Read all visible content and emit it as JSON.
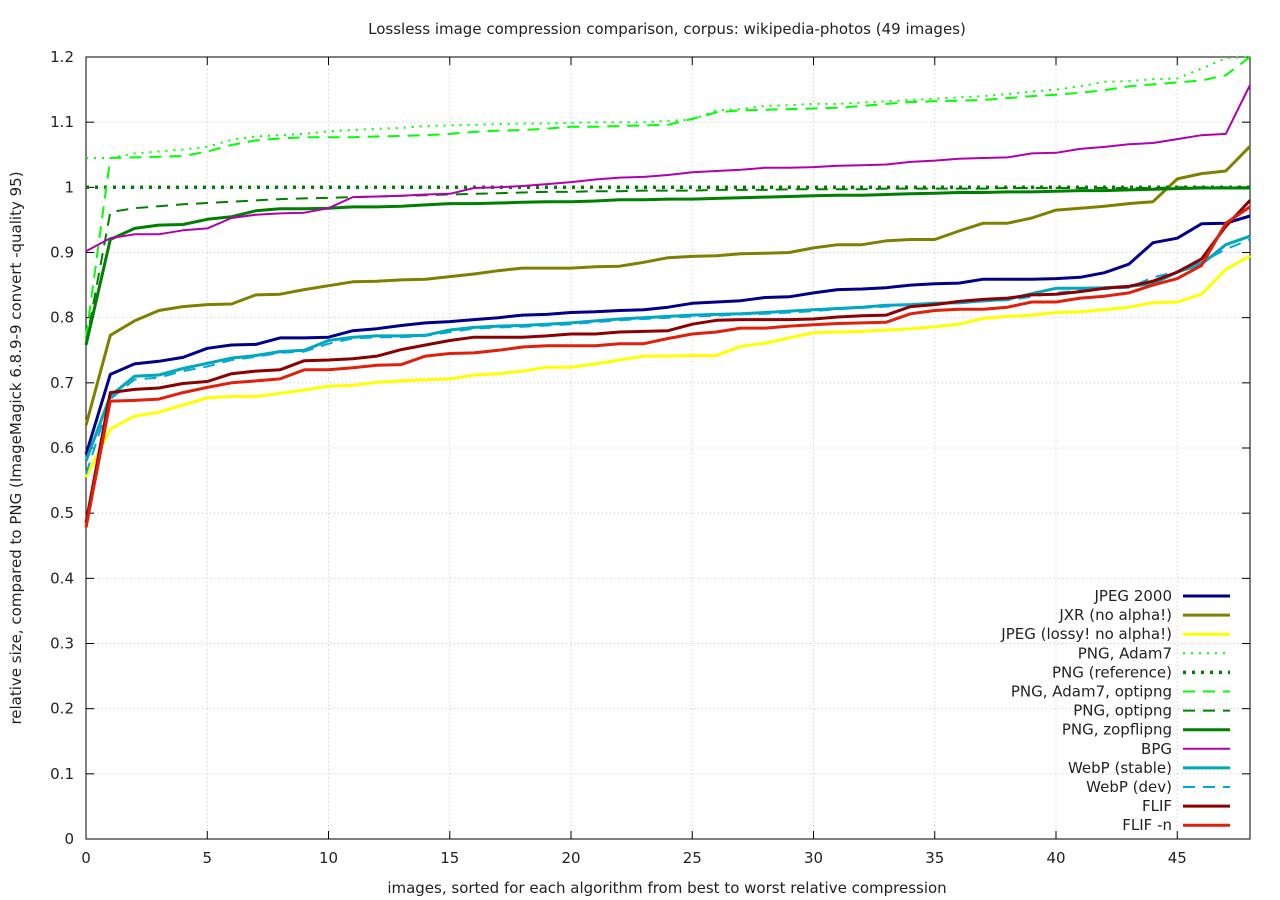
{
  "chart_data": {
    "type": "line",
    "title": "Lossless image compression comparison, corpus: wikipedia-photos (49 images)",
    "xlabel": "images, sorted for each algorithm from best to worst relative compression",
    "ylabel": "relative size, compared to PNG (ImageMagick 6.8.9-9 convert -quality 95)",
    "xlim": [
      0,
      48
    ],
    "ylim": [
      0,
      1.2
    ],
    "xticks": [
      "0",
      "5",
      "10",
      "15",
      "20",
      "25",
      "30",
      "35",
      "40",
      "45"
    ],
    "yticks": [
      "0",
      "0.1",
      "0.2",
      "0.3",
      "0.4",
      "0.5",
      "0.6",
      "0.7",
      "0.8",
      "0.9",
      "1",
      "1.1",
      "1.2"
    ],
    "grid": true,
    "legend_position": "bottom-right",
    "x": [
      0,
      1,
      2,
      3,
      4,
      5,
      6,
      7,
      8,
      9,
      10,
      11,
      12,
      13,
      14,
      15,
      16,
      17,
      18,
      19,
      20,
      21,
      22,
      23,
      24,
      25,
      26,
      27,
      28,
      29,
      30,
      31,
      32,
      33,
      34,
      35,
      36,
      37,
      38,
      39,
      40,
      41,
      42,
      43,
      44,
      45,
      46,
      47,
      48
    ],
    "series": [
      {
        "name": "JPEG 2000",
        "color": "#00008b",
        "style": "solid",
        "width": 3,
        "values": [
          0.59,
          0.713,
          0.729,
          0.733,
          0.739,
          0.753,
          0.758,
          0.759,
          0.769,
          0.769,
          0.77,
          0.78,
          0.783,
          0.788,
          0.792,
          0.794,
          0.797,
          0.8,
          0.804,
          0.805,
          0.808,
          0.809,
          0.811,
          0.812,
          0.816,
          0.822,
          0.824,
          0.826,
          0.831,
          0.832,
          0.838,
          0.843,
          0.844,
          0.846,
          0.85,
          0.852,
          0.853,
          0.859,
          0.859,
          0.859,
          0.86,
          0.862,
          0.869,
          0.882,
          0.915,
          0.922,
          0.944,
          0.945,
          0.956
        ]
      },
      {
        "name": "JXR (no alpha!)",
        "color": "#808000",
        "style": "solid",
        "width": 3,
        "values": [
          0.635,
          0.773,
          0.795,
          0.811,
          0.817,
          0.82,
          0.821,
          0.835,
          0.836,
          0.843,
          0.849,
          0.855,
          0.856,
          0.858,
          0.859,
          0.863,
          0.867,
          0.872,
          0.876,
          0.876,
          0.876,
          0.878,
          0.879,
          0.885,
          0.892,
          0.894,
          0.895,
          0.898,
          0.899,
          0.9,
          0.907,
          0.912,
          0.912,
          0.918,
          0.92,
          0.92,
          0.933,
          0.945,
          0.945,
          0.953,
          0.965,
          0.968,
          0.971,
          0.975,
          0.978,
          1.013,
          1.021,
          1.025,
          1.063
        ]
      },
      {
        "name": "JPEG (lossy! no alpha!)",
        "color": "#ffff00",
        "style": "solid",
        "width": 3,
        "values": [
          0.555,
          0.629,
          0.649,
          0.655,
          0.666,
          0.677,
          0.679,
          0.679,
          0.684,
          0.689,
          0.695,
          0.696,
          0.701,
          0.703,
          0.705,
          0.706,
          0.712,
          0.714,
          0.718,
          0.724,
          0.724,
          0.729,
          0.735,
          0.741,
          0.741,
          0.742,
          0.742,
          0.756,
          0.761,
          0.769,
          0.777,
          0.778,
          0.779,
          0.781,
          0.783,
          0.786,
          0.79,
          0.799,
          0.802,
          0.804,
          0.808,
          0.809,
          0.812,
          0.816,
          0.823,
          0.824,
          0.836,
          0.874,
          0.895
        ]
      },
      {
        "name": "PNG, Adam7",
        "color": "#00ff00",
        "style": "dotted",
        "width": 2,
        "values": [
          1.045,
          1.045,
          1.052,
          1.055,
          1.058,
          1.062,
          1.073,
          1.078,
          1.08,
          1.082,
          1.086,
          1.088,
          1.09,
          1.091,
          1.094,
          1.095,
          1.096,
          1.097,
          1.098,
          1.098,
          1.099,
          1.1,
          1.1,
          1.1,
          1.102,
          1.104,
          1.118,
          1.12,
          1.125,
          1.126,
          1.128,
          1.128,
          1.13,
          1.132,
          1.134,
          1.136,
          1.138,
          1.14,
          1.143,
          1.147,
          1.15,
          1.155,
          1.162,
          1.163,
          1.166,
          1.167,
          1.182,
          1.198,
          1.2
        ]
      },
      {
        "name": "PNG (reference)",
        "color": "#008000",
        "style": "dotted-thick",
        "width": 3.5,
        "values": [
          1,
          1,
          1,
          1,
          1,
          1,
          1,
          1,
          1,
          1,
          1,
          1,
          1,
          1,
          1,
          1,
          1,
          1,
          1,
          1,
          1,
          1,
          1,
          1,
          1,
          1,
          1,
          1,
          1,
          1,
          1,
          1,
          1,
          1,
          1,
          1,
          1,
          1,
          1,
          1,
          1,
          1,
          1,
          1,
          1,
          1,
          1,
          1,
          1
        ]
      },
      {
        "name": "PNG, Adam7, optipng",
        "color": "#00ff00",
        "style": "dashed",
        "width": 2,
        "values": [
          0.77,
          1.045,
          1.046,
          1.047,
          1.048,
          1.055,
          1.065,
          1.072,
          1.075,
          1.077,
          1.077,
          1.077,
          1.078,
          1.079,
          1.08,
          1.082,
          1.085,
          1.087,
          1.088,
          1.09,
          1.093,
          1.093,
          1.094,
          1.095,
          1.096,
          1.105,
          1.115,
          1.118,
          1.119,
          1.12,
          1.121,
          1.122,
          1.125,
          1.128,
          1.131,
          1.132,
          1.133,
          1.134,
          1.137,
          1.14,
          1.142,
          1.145,
          1.149,
          1.155,
          1.158,
          1.161,
          1.164,
          1.172,
          1.2
        ]
      },
      {
        "name": "PNG, optipng",
        "color": "#008000",
        "style": "dashed",
        "width": 2,
        "values": [
          0.76,
          0.962,
          0.968,
          0.971,
          0.974,
          0.976,
          0.978,
          0.98,
          0.982,
          0.983,
          0.984,
          0.985,
          0.986,
          0.987,
          0.988,
          0.989,
          0.99,
          0.991,
          0.992,
          0.993,
          0.993,
          0.994,
          0.994,
          0.995,
          0.995,
          0.995,
          0.996,
          0.996,
          0.996,
          0.997,
          0.997,
          0.997,
          0.997,
          0.998,
          0.998,
          0.998,
          0.998,
          0.998,
          0.999,
          0.999,
          0.999,
          0.999,
          0.999,
          0.999,
          0.999,
          1,
          1,
          1,
          1
        ]
      },
      {
        "name": "PNG, zopflipng",
        "color": "#008000",
        "style": "solid",
        "width": 3,
        "values": [
          0.758,
          0.92,
          0.937,
          0.942,
          0.943,
          0.951,
          0.955,
          0.964,
          0.967,
          0.967,
          0.968,
          0.97,
          0.97,
          0.971,
          0.973,
          0.975,
          0.975,
          0.976,
          0.977,
          0.978,
          0.978,
          0.979,
          0.981,
          0.981,
          0.982,
          0.982,
          0.983,
          0.984,
          0.985,
          0.986,
          0.987,
          0.988,
          0.988,
          0.989,
          0.99,
          0.991,
          0.992,
          0.992,
          0.993,
          0.993,
          0.994,
          0.995,
          0.995,
          0.996,
          0.997,
          0.998,
          0.999,
          0.999,
          0.999
        ]
      },
      {
        "name": "BPG",
        "color": "#b000b0",
        "style": "solid",
        "width": 2,
        "values": [
          0.902,
          0.922,
          0.928,
          0.928,
          0.934,
          0.937,
          0.953,
          0.958,
          0.96,
          0.961,
          0.968,
          0.985,
          0.986,
          0.987,
          0.989,
          0.99,
          0.999,
          1.0,
          1.002,
          1.005,
          1.008,
          1.012,
          1.015,
          1.016,
          1.019,
          1.023,
          1.025,
          1.027,
          1.03,
          1.03,
          1.031,
          1.033,
          1.034,
          1.035,
          1.039,
          1.041,
          1.044,
          1.045,
          1.046,
          1.052,
          1.053,
          1.059,
          1.062,
          1.066,
          1.068,
          1.074,
          1.08,
          1.082,
          1.157
        ]
      },
      {
        "name": "WebP (stable)",
        "color": "#00a8b8",
        "style": "solid",
        "width": 3,
        "values": [
          0.58,
          0.68,
          0.71,
          0.712,
          0.722,
          0.73,
          0.738,
          0.742,
          0.748,
          0.75,
          0.765,
          0.77,
          0.772,
          0.772,
          0.773,
          0.781,
          0.785,
          0.787,
          0.788,
          0.79,
          0.792,
          0.795,
          0.798,
          0.8,
          0.802,
          0.804,
          0.805,
          0.806,
          0.808,
          0.81,
          0.812,
          0.814,
          0.816,
          0.819,
          0.82,
          0.822,
          0.823,
          0.826,
          0.828,
          0.837,
          0.845,
          0.845,
          0.846,
          0.848,
          0.852,
          0.87,
          0.882,
          0.912,
          0.925
        ]
      },
      {
        "name": "WebP (dev)",
        "color": "#00a8e0",
        "style": "dashed",
        "width": 2,
        "values": [
          0.56,
          0.675,
          0.705,
          0.708,
          0.718,
          0.725,
          0.735,
          0.74,
          0.746,
          0.748,
          0.76,
          0.768,
          0.77,
          0.77,
          0.772,
          0.778,
          0.783,
          0.785,
          0.786,
          0.788,
          0.79,
          0.793,
          0.796,
          0.798,
          0.8,
          0.802,
          0.803,
          0.805,
          0.806,
          0.808,
          0.81,
          0.813,
          0.815,
          0.817,
          0.82,
          0.821,
          0.822,
          0.825,
          0.827,
          0.832,
          0.838,
          0.842,
          0.844,
          0.846,
          0.862,
          0.871,
          0.885,
          0.905,
          0.92
        ]
      },
      {
        "name": "FLIF",
        "color": "#8b0000",
        "style": "solid",
        "width": 3,
        "values": [
          0.485,
          0.685,
          0.69,
          0.692,
          0.699,
          0.702,
          0.714,
          0.718,
          0.72,
          0.734,
          0.735,
          0.737,
          0.741,
          0.751,
          0.758,
          0.765,
          0.77,
          0.77,
          0.77,
          0.772,
          0.775,
          0.775,
          0.778,
          0.779,
          0.78,
          0.79,
          0.796,
          0.797,
          0.797,
          0.797,
          0.798,
          0.801,
          0.803,
          0.804,
          0.817,
          0.82,
          0.825,
          0.828,
          0.83,
          0.835,
          0.836,
          0.84,
          0.845,
          0.848,
          0.856,
          0.87,
          0.89,
          0.94,
          0.98
        ]
      },
      {
        "name": "FLIF -n",
        "color": "#e0200a",
        "style": "solid",
        "width": 3,
        "values": [
          0.478,
          0.672,
          0.673,
          0.675,
          0.685,
          0.693,
          0.7,
          0.703,
          0.706,
          0.72,
          0.72,
          0.723,
          0.727,
          0.728,
          0.741,
          0.745,
          0.746,
          0.75,
          0.755,
          0.757,
          0.757,
          0.757,
          0.76,
          0.76,
          0.768,
          0.775,
          0.778,
          0.784,
          0.784,
          0.787,
          0.789,
          0.791,
          0.792,
          0.793,
          0.806,
          0.811,
          0.813,
          0.813,
          0.816,
          0.824,
          0.824,
          0.83,
          0.833,
          0.838,
          0.85,
          0.86,
          0.88,
          0.945,
          0.97
        ]
      }
    ]
  }
}
